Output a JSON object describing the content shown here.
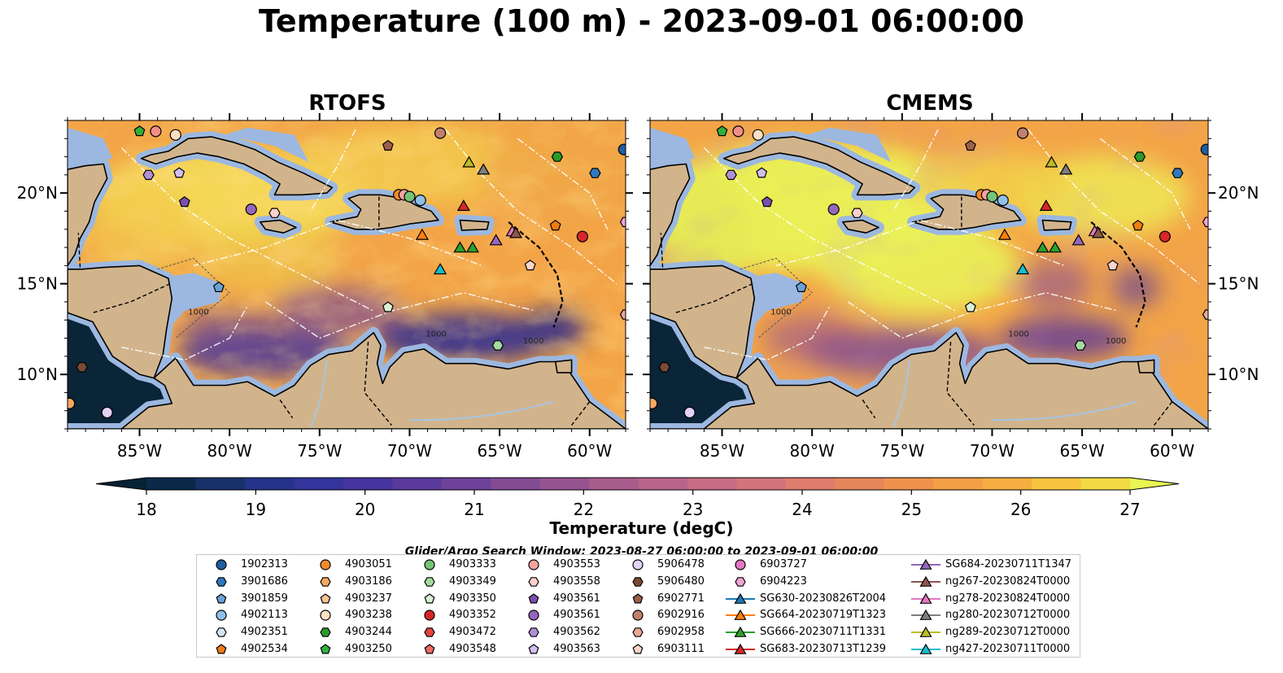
{
  "title": "Temperature (100 m) - 2023-09-01 06:00:00",
  "panels": [
    {
      "title": "RTOFS",
      "variant": "rtofs"
    },
    {
      "title": "CMEMS",
      "variant": "cmems"
    }
  ],
  "map": {
    "lon_range": [
      -89,
      -58
    ],
    "lat_range": [
      7,
      24
    ],
    "lon_ticks": [
      {
        "v": -85,
        "label": "85°W"
      },
      {
        "v": -80,
        "label": "80°W"
      },
      {
        "v": -75,
        "label": "75°W"
      },
      {
        "v": -70,
        "label": "70°W"
      },
      {
        "v": -65,
        "label": "65°W"
      },
      {
        "v": -60,
        "label": "60°W"
      }
    ],
    "lat_ticks": [
      {
        "v": 20,
        "label": "20°N"
      },
      {
        "v": 15,
        "label": "15°N"
      },
      {
        "v": 10,
        "label": "10°N"
      }
    ],
    "land_color": "#d2b48c",
    "shelf_color": "#9cb8e0",
    "contour_labels": [
      "1000",
      "1000",
      "1000"
    ]
  },
  "colorbar": {
    "label": "Temperature (degC)",
    "min": 18,
    "max": 27,
    "ticks": [
      "18",
      "19",
      "20",
      "21",
      "22",
      "23",
      "24",
      "25",
      "26",
      "27"
    ],
    "colors": [
      "#062235",
      "#0b2a4a",
      "#18316b",
      "#25338a",
      "#34349c",
      "#45349f",
      "#5a3a9c",
      "#6e4299",
      "#824b93",
      "#955390",
      "#a75c8c",
      "#b7648a",
      "#c66d83",
      "#d3737c",
      "#de7c6d",
      "#e6865b",
      "#ee924d",
      "#f39f45",
      "#f6ae41",
      "#f7c43f",
      "#f2da46",
      "#e9f553"
    ]
  },
  "search_window": "Glider/Argo Search Window: 2023-08-27 06:00:00 to 2023-09-01 06:00:00",
  "legend": {
    "columns": [
      [
        {
          "label": "1902313",
          "marker": "circle",
          "color": "#1f5fa0"
        },
        {
          "label": "3901686",
          "marker": "hexagon",
          "color": "#2f78c0"
        },
        {
          "label": "3901859",
          "marker": "pentagon",
          "color": "#6aa2d8"
        },
        {
          "label": "4902113",
          "marker": "circle",
          "color": "#8fc0ea"
        },
        {
          "label": "4902351",
          "marker": "hexagon",
          "color": "#cfe4f6"
        },
        {
          "label": "4902534",
          "marker": "pentagon",
          "color": "#f07d12"
        }
      ],
      [
        {
          "label": "4903051",
          "marker": "circle",
          "color": "#f48a2a"
        },
        {
          "label": "4903186",
          "marker": "hexagon",
          "color": "#f7a860"
        },
        {
          "label": "4903237",
          "marker": "pentagon",
          "color": "#fac392"
        },
        {
          "label": "4903238",
          "marker": "circle",
          "color": "#fde0c2"
        },
        {
          "label": "4903244",
          "marker": "hexagon",
          "color": "#2a9a2a"
        },
        {
          "label": "4903250",
          "marker": "pentagon",
          "color": "#33b03a"
        }
      ],
      [
        {
          "label": "4903333",
          "marker": "circle",
          "color": "#74c476"
        },
        {
          "label": "4903349",
          "marker": "hexagon",
          "color": "#a6dba0"
        },
        {
          "label": "4903350",
          "marker": "pentagon",
          "color": "#d9f0d3"
        },
        {
          "label": "4903352",
          "marker": "circle",
          "color": "#d62728"
        },
        {
          "label": "4903472",
          "marker": "hexagon",
          "color": "#e0453e"
        },
        {
          "label": "4903548",
          "marker": "pentagon",
          "color": "#ef6a63"
        }
      ],
      [
        {
          "label": "4903553",
          "marker": "circle",
          "color": "#f5a3a0"
        },
        {
          "label": "4903558",
          "marker": "hexagon",
          "color": "#fbd0cc"
        },
        {
          "label": "4903561",
          "marker": "pentagon",
          "color": "#7b4fb0"
        },
        {
          "label": "4903561",
          "marker": "circle",
          "color": "#9467bd"
        },
        {
          "label": "4903562",
          "marker": "hexagon",
          "color": "#b08fd6"
        },
        {
          "label": "4903563",
          "marker": "pentagon",
          "color": "#d2bdf0"
        }
      ],
      [
        {
          "label": "5906478",
          "marker": "circle",
          "color": "#e4d2f7"
        },
        {
          "label": "5906480",
          "marker": "hexagon",
          "color": "#7b4a35"
        },
        {
          "label": "6902771",
          "marker": "pentagon",
          "color": "#9a6048"
        },
        {
          "label": "6902916",
          "marker": "circle",
          "color": "#c08070"
        },
        {
          "label": "6902958",
          "marker": "hexagon",
          "color": "#e8a898"
        },
        {
          "label": "6903111",
          "marker": "pentagon",
          "color": "#fbd6ca"
        }
      ],
      [
        {
          "label": "6903727",
          "marker": "circle",
          "color": "#e377c2"
        },
        {
          "label": "6904223",
          "marker": "hexagon",
          "color": "#f0a3d8"
        },
        {
          "label": "SG630-20230826T2004",
          "marker": "triangle",
          "color": "#1f77b4"
        },
        {
          "label": "SG664-20230719T1323",
          "marker": "triangle",
          "color": "#ff7f0e"
        },
        {
          "label": "SG666-20230711T1331",
          "marker": "triangle",
          "color": "#2ca02c"
        },
        {
          "label": "SG683-20230713T1239",
          "marker": "triangle",
          "color": "#d62728"
        }
      ],
      [
        {
          "label": "SG684-20230711T1347",
          "marker": "triangle",
          "color": "#9467bd"
        },
        {
          "label": "ng267-20230824T0000",
          "marker": "triangle",
          "color": "#8c564b"
        },
        {
          "label": "ng278-20230824T0000",
          "marker": "triangle",
          "color": "#e377c2"
        },
        {
          "label": "ng280-20230712T0000",
          "marker": "triangle",
          "color": "#7f7f7f"
        },
        {
          "label": "ng289-20230712T0000",
          "marker": "triangle",
          "color": "#bcbd22"
        },
        {
          "label": "ng427-20230711T0000",
          "marker": "triangle",
          "color": "#17becf"
        }
      ]
    ]
  },
  "stations": [
    {
      "lon": -85.0,
      "lat": 23.4,
      "marker": "pentagon",
      "color": "#33b03a"
    },
    {
      "lon": -84.1,
      "lat": 23.4,
      "marker": "circle",
      "color": "#f28e8a"
    },
    {
      "lon": -83.0,
      "lat": 23.2,
      "marker": "circle",
      "color": "#fde0c2"
    },
    {
      "lon": -84.5,
      "lat": 21.0,
      "marker": "hexagon",
      "color": "#b08fd6"
    },
    {
      "lon": -82.8,
      "lat": 21.1,
      "marker": "pentagon",
      "color": "#d2bdf0"
    },
    {
      "lon": -82.5,
      "lat": 19.5,
      "marker": "pentagon",
      "color": "#7b4fb0"
    },
    {
      "lon": -78.8,
      "lat": 19.1,
      "marker": "circle",
      "color": "#9467bd"
    },
    {
      "lon": -77.5,
      "lat": 18.9,
      "marker": "hexagon",
      "color": "#fbd0cc"
    },
    {
      "lon": -80.6,
      "lat": 14.8,
      "marker": "pentagon",
      "color": "#6aa2d8"
    },
    {
      "lon": -71.2,
      "lat": 22.6,
      "marker": "pentagon",
      "color": "#9a6048"
    },
    {
      "lon": -68.3,
      "lat": 23.3,
      "marker": "circle",
      "color": "#c08070"
    },
    {
      "lon": -70.6,
      "lat": 19.9,
      "marker": "circle",
      "color": "#f48a2a"
    },
    {
      "lon": -70.3,
      "lat": 19.9,
      "marker": "circle",
      "color": "#f5a3a0"
    },
    {
      "lon": -70.0,
      "lat": 19.8,
      "marker": "circle",
      "color": "#74c476"
    },
    {
      "lon": -69.4,
      "lat": 19.6,
      "marker": "circle",
      "color": "#8fc0ea"
    },
    {
      "lon": -66.7,
      "lat": 21.7,
      "marker": "triangle",
      "color": "#bcbd22"
    },
    {
      "lon": -65.9,
      "lat": 21.3,
      "marker": "triangle",
      "color": "#7f7f7f"
    },
    {
      "lon": -67.0,
      "lat": 19.3,
      "marker": "triangle",
      "color": "#d62728"
    },
    {
      "lon": -69.3,
      "lat": 17.7,
      "marker": "triangle",
      "color": "#ff7f0e"
    },
    {
      "lon": -67.2,
      "lat": 17.0,
      "marker": "triangle",
      "color": "#2ca02c"
    },
    {
      "lon": -66.5,
      "lat": 17.0,
      "marker": "triangle",
      "color": "#2ca02c"
    },
    {
      "lon": -65.2,
      "lat": 17.4,
      "marker": "triangle",
      "color": "#9467bd"
    },
    {
      "lon": -64.3,
      "lat": 17.9,
      "marker": "triangle",
      "color": "#e377c2"
    },
    {
      "lon": -64.1,
      "lat": 17.8,
      "marker": "triangle",
      "color": "#8c564b"
    },
    {
      "lon": -68.3,
      "lat": 15.8,
      "marker": "triangle",
      "color": "#17becf"
    },
    {
      "lon": -63.3,
      "lat": 16.0,
      "marker": "pentagon",
      "color": "#fbd6ca"
    },
    {
      "lon": -61.8,
      "lat": 22.0,
      "marker": "hexagon",
      "color": "#2a9a2a"
    },
    {
      "lon": -59.7,
      "lat": 21.1,
      "marker": "hexagon",
      "color": "#2f78c0"
    },
    {
      "lon": -58.1,
      "lat": 22.4,
      "marker": "circle",
      "color": "#1f5fa0"
    },
    {
      "lon": -61.9,
      "lat": 18.2,
      "marker": "pentagon",
      "color": "#f07d12"
    },
    {
      "lon": -60.4,
      "lat": 17.6,
      "marker": "circle",
      "color": "#d62728"
    },
    {
      "lon": -58.0,
      "lat": 18.4,
      "marker": "hexagon",
      "color": "#f0a3d8"
    },
    {
      "lon": -58.0,
      "lat": 13.3,
      "marker": "hexagon",
      "color": "#e8a898"
    },
    {
      "lon": -71.2,
      "lat": 13.7,
      "marker": "pentagon",
      "color": "#d9f0d3"
    },
    {
      "lon": -65.1,
      "lat": 11.6,
      "marker": "hexagon",
      "color": "#a6dba0"
    },
    {
      "lon": -88.2,
      "lat": 10.4,
      "marker": "hexagon",
      "color": "#7b4a35"
    },
    {
      "lon": -86.8,
      "lat": 7.9,
      "marker": "circle",
      "color": "#e4d2f7"
    },
    {
      "lon": -88.9,
      "lat": 8.4,
      "marker": "circle",
      "color": "#f7a860"
    }
  ]
}
